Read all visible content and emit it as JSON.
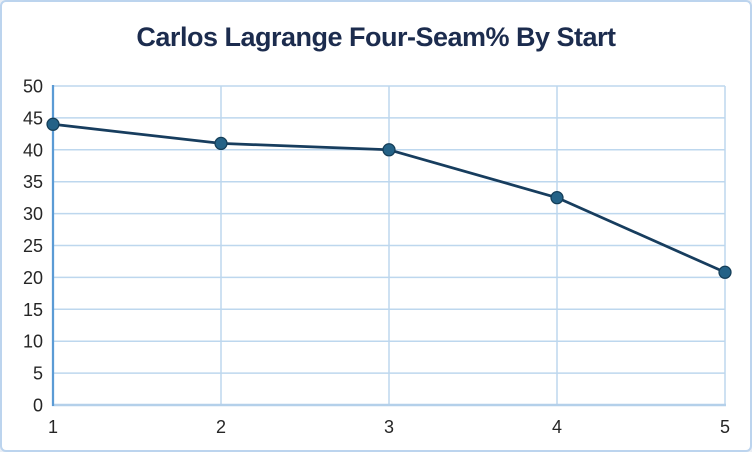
{
  "frame": {
    "background": "#ffffff",
    "border_color": "#bcd4ee"
  },
  "chart_data": {
    "type": "line",
    "title": "Carlos Lagrange Four-Seam% By Start",
    "x": [
      1,
      2,
      3,
      4,
      5
    ],
    "values": [
      44,
      41,
      40,
      32.5,
      20.8
    ],
    "xlabel": "",
    "ylabel": "",
    "xticks": [
      "1",
      "2",
      "3",
      "4",
      "5"
    ],
    "ylim": [
      0,
      50
    ],
    "ytick_step": 5,
    "grid": true,
    "legend_position": "none",
    "colors": {
      "line": "#173d5e",
      "marker_fill": "#246287",
      "marker_stroke": "#143d57",
      "gridline": "#bdd7ee",
      "y_axis_line": "#5b9bd5",
      "x_axis_line": "#b4d0ea",
      "title_text": "#1c2c4e",
      "tick_text": "#262626"
    }
  }
}
